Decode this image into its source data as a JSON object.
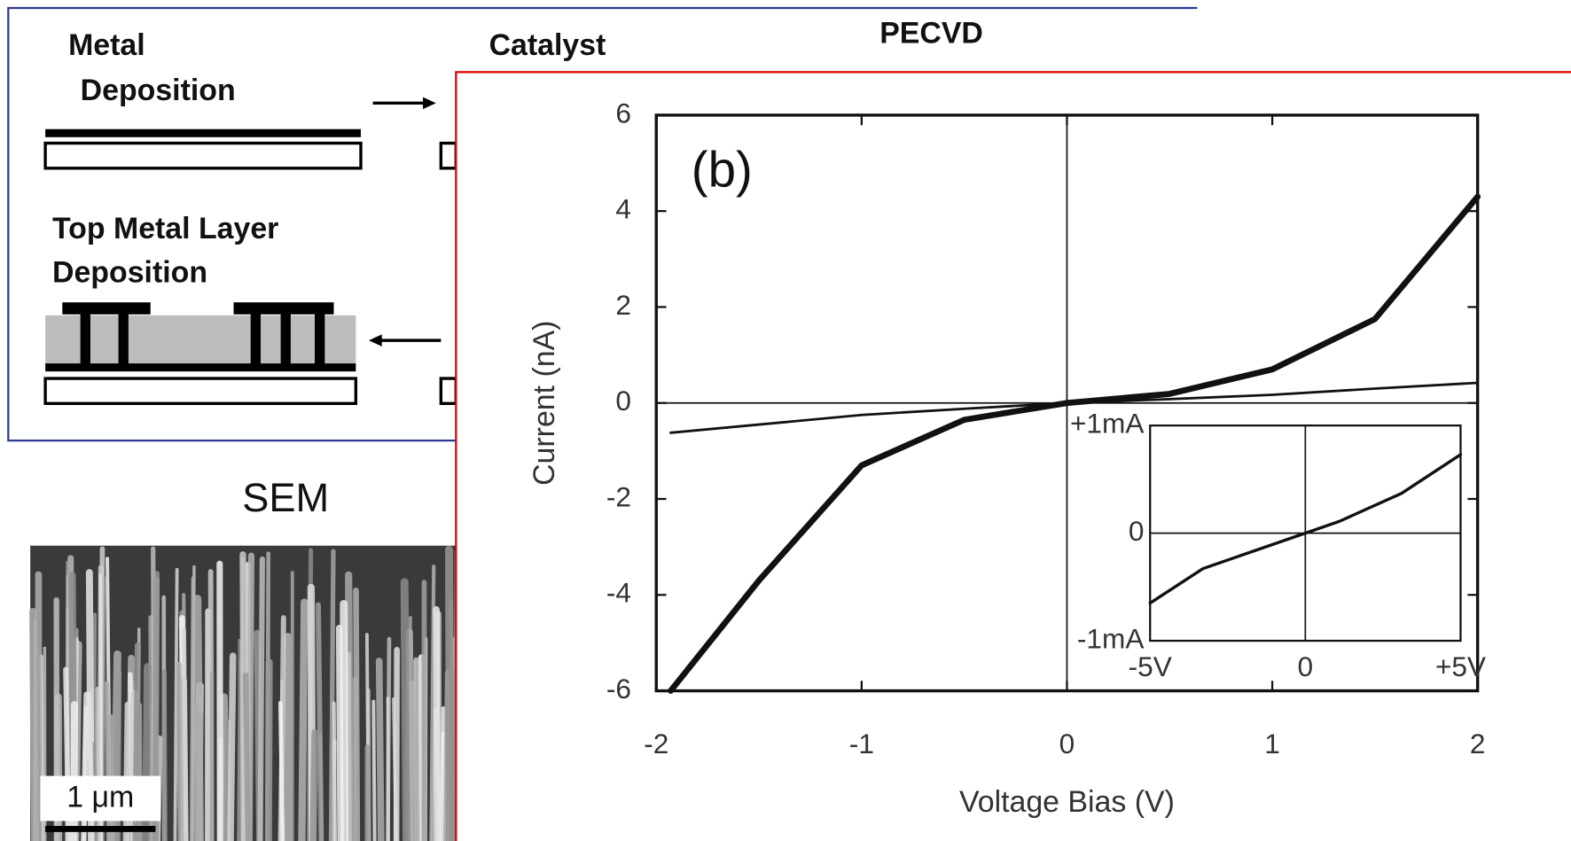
{
  "diagram": {
    "metal_deposition": [
      "Metal",
      "Deposition"
    ],
    "catalyst": "Catalyst",
    "pecvd": "PECVD",
    "top_metal_layer_deposition": [
      "Top Metal Layer",
      "Deposition"
    ]
  },
  "sem": {
    "title": "SEM",
    "scale_bar": "1 μm"
  },
  "chart_data": [
    {
      "type": "line",
      "x_label": "Voltage Bias (V)",
      "y_label": "Current (nA)",
      "annotation": "(b)",
      "x": [
        -1.93,
        -1.5,
        -1,
        -0.5,
        0,
        0.5,
        1,
        1.5,
        2
      ],
      "series": [
        {
          "color": "#111111",
          "values": [
            -6,
            -3.7,
            -1.3,
            -0.35,
            0,
            0.19,
            0.7,
            1.75,
            4.3
          ]
        },
        {
          "color": "#111111",
          "values": [
            -0.62,
            -0.45,
            -0.25,
            -0.12,
            0,
            0.08,
            0.17,
            0.3,
            0.42
          ]
        }
      ],
      "xlim": [
        -2,
        2
      ],
      "ylim": [
        -6,
        6
      ],
      "xticks": [
        -2,
        -1,
        0,
        1,
        2
      ],
      "yticks": [
        -6,
        -4,
        -2,
        0,
        2,
        4,
        6
      ],
      "zero_lines": true
    },
    {
      "type": "line",
      "x": [
        -5,
        -3.3,
        -1.7,
        0,
        1.1,
        3.1,
        5
      ],
      "series": [
        {
          "color": "#111111",
          "values": [
            -0.65,
            -0.33,
            -0.17,
            0,
            0.11,
            0.37,
            0.73
          ]
        }
      ],
      "xlim": [
        -5,
        5
      ],
      "ylim": [
        -1,
        1
      ],
      "xticks": [
        {
          "value": -5,
          "label": "-5V"
        },
        0,
        {
          "value": 5,
          "label": "+5V"
        }
      ],
      "yticks": [
        {
          "value": -1,
          "label": "-1mA"
        },
        0,
        {
          "value": 1,
          "label": "+1mA"
        }
      ],
      "zero_lines": true
    }
  ]
}
